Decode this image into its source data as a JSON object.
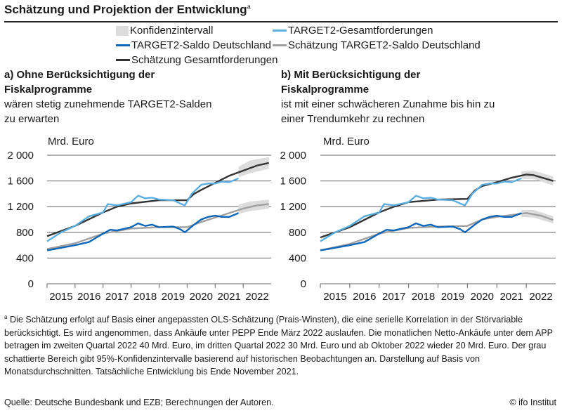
{
  "title": "Schätzung und Projektion der Entwicklung",
  "title_sup": "a",
  "legend": [
    {
      "label": "Konfidenzintervall",
      "color": "#dcdcdc",
      "kind": "box"
    },
    {
      "label": "TARGET2-Gesamtforderungen",
      "color": "#5aaee0",
      "kind": "line"
    },
    {
      "label": "TARGET2-Saldo Deutschland",
      "color": "#0a66b8",
      "kind": "line"
    },
    {
      "label": "Schätzung TARGET2-Saldo Deutschland",
      "color": "#a0a0a0",
      "kind": "line"
    },
    {
      "label": "Schätzung Gesamtforderungen",
      "color": "#333333",
      "kind": "line"
    }
  ],
  "panels": {
    "a": {
      "heading": "a) Ohne Berücksichtigung der",
      "heading2": "Fiskalprogramme",
      "sub1": "wären stetig zunehmende TARGET2-Salden",
      "sub2": "zu erwarten"
    },
    "b": {
      "heading": "b) Mit Berücksichtigung der",
      "heading2": "Fiskalprogramme",
      "sub1": "ist mit einer schwächeren Zunahme bis hin zu",
      "sub2": "einer Trendumkehr zu rechnen"
    }
  },
  "chart_data": [
    {
      "type": "line",
      "panel": "a",
      "ylabel": "Mrd. Euro",
      "ylim": [
        0,
        2000
      ],
      "yticks": [
        0,
        400,
        800,
        1200,
        1600,
        2000
      ],
      "ytick_labels": [
        "0",
        "400",
        "800",
        "1 200",
        "1 600",
        "2 000"
      ],
      "xlim": [
        "2015-01",
        "2022-12"
      ],
      "xtick_labels": [
        "2015",
        "2016",
        "2017",
        "2018",
        "2019",
        "2020",
        "2021",
        "2022"
      ],
      "grid": true,
      "series": [
        {
          "name": "TARGET2-Gesamtforderungen",
          "color": "#5aaee0",
          "points": [
            [
              "2015-01",
              660
            ],
            [
              "2015-07",
              800
            ],
            [
              "2016-01",
              900
            ],
            [
              "2016-07",
              1050
            ],
            [
              "2017-01",
              1110
            ],
            [
              "2017-03",
              1240
            ],
            [
              "2017-07",
              1220
            ],
            [
              "2018-01",
              1270
            ],
            [
              "2018-04",
              1370
            ],
            [
              "2018-07",
              1330
            ],
            [
              "2018-10",
              1340
            ],
            [
              "2019-01",
              1310
            ],
            [
              "2019-07",
              1300
            ],
            [
              "2019-10",
              1250
            ],
            [
              "2019-12",
              1220
            ],
            [
              "2020-03",
              1400
            ],
            [
              "2020-07",
              1540
            ],
            [
              "2020-10",
              1560
            ],
            [
              "2021-01",
              1560
            ],
            [
              "2021-04",
              1590
            ],
            [
              "2021-07",
              1580
            ],
            [
              "2021-11",
              1640
            ]
          ]
        },
        {
          "name": "TARGET2-Saldo Deutschland",
          "color": "#0a66b8",
          "points": [
            [
              "2015-01",
              520
            ],
            [
              "2015-07",
              560
            ],
            [
              "2016-01",
              600
            ],
            [
              "2016-07",
              650
            ],
            [
              "2017-01",
              780
            ],
            [
              "2017-04",
              840
            ],
            [
              "2017-07",
              830
            ],
            [
              "2018-01",
              880
            ],
            [
              "2018-04",
              940
            ],
            [
              "2018-07",
              900
            ],
            [
              "2018-10",
              920
            ],
            [
              "2019-01",
              880
            ],
            [
              "2019-07",
              890
            ],
            [
              "2019-10",
              850
            ],
            [
              "2019-12",
              800
            ],
            [
              "2020-04",
              920
            ],
            [
              "2020-07",
              1000
            ],
            [
              "2020-10",
              1040
            ],
            [
              "2021-01",
              1060
            ],
            [
              "2021-04",
              1040
            ],
            [
              "2021-07",
              1040
            ],
            [
              "2021-11",
              1100
            ]
          ]
        },
        {
          "name": "Schätzung Gesamtforderungen",
          "color": "#333333",
          "points": [
            [
              "2015-01",
              740
            ],
            [
              "2016-01",
              900
            ],
            [
              "2017-01",
              1110
            ],
            [
              "2017-07",
              1200
            ],
            [
              "2018-01",
              1250
            ],
            [
              "2019-01",
              1300
            ],
            [
              "2020-01",
              1300
            ],
            [
              "2020-04",
              1400
            ],
            [
              "2020-07",
              1460
            ],
            [
              "2021-01",
              1570
            ],
            [
              "2021-07",
              1680
            ],
            [
              "2022-01",
              1760
            ],
            [
              "2022-07",
              1840
            ],
            [
              "2022-12",
              1880
            ]
          ]
        },
        {
          "name": "Schätzung TARGET2-Saldo Deutschland",
          "color": "#a0a0a0",
          "points": [
            [
              "2015-01",
              540
            ],
            [
              "2016-01",
              630
            ],
            [
              "2017-01",
              780
            ],
            [
              "2018-01",
              860
            ],
            [
              "2019-01",
              880
            ],
            [
              "2020-01",
              880
            ],
            [
              "2020-07",
              960
            ],
            [
              "2021-01",
              1030
            ],
            [
              "2021-07",
              1100
            ],
            [
              "2022-01",
              1170
            ],
            [
              "2022-07",
              1220
            ],
            [
              "2022-12",
              1240
            ]
          ]
        }
      ],
      "confidence_bands": [
        {
          "series": "Schätzung Gesamtforderungen",
          "points": [
            [
              "2021-11",
              1660,
              1820
            ],
            [
              "2022-04",
              1720,
              1920
            ],
            [
              "2022-12",
              1790,
              1970
            ]
          ]
        },
        {
          "series": "Schätzung TARGET2-Saldo Deutschland",
          "points": [
            [
              "2021-11",
              1090,
              1230
            ],
            [
              "2022-04",
              1130,
              1280
            ],
            [
              "2022-12",
              1170,
              1310
            ]
          ]
        }
      ]
    },
    {
      "type": "line",
      "panel": "b",
      "ylabel": "Mrd. Euro",
      "ylim": [
        0,
        2000
      ],
      "yticks": [
        0,
        400,
        800,
        1200,
        1600,
        2000
      ],
      "ytick_labels": [
        "0",
        "400",
        "800",
        "1 200",
        "1 600",
        "2 000"
      ],
      "xlim": [
        "2015-01",
        "2022-12"
      ],
      "xtick_labels": [
        "2015",
        "2016",
        "2017",
        "2018",
        "2019",
        "2020",
        "2021",
        "2022"
      ],
      "grid": true,
      "series": [
        {
          "name": "TARGET2-Gesamtforderungen",
          "color": "#5aaee0",
          "points": [
            [
              "2015-01",
              660
            ],
            [
              "2015-07",
              800
            ],
            [
              "2016-01",
              900
            ],
            [
              "2016-07",
              1050
            ],
            [
              "2017-01",
              1110
            ],
            [
              "2017-03",
              1240
            ],
            [
              "2017-07",
              1220
            ],
            [
              "2018-01",
              1270
            ],
            [
              "2018-04",
              1370
            ],
            [
              "2018-07",
              1330
            ],
            [
              "2018-10",
              1340
            ],
            [
              "2019-01",
              1310
            ],
            [
              "2019-07",
              1300
            ],
            [
              "2019-10",
              1250
            ],
            [
              "2019-12",
              1220
            ],
            [
              "2020-03",
              1400
            ],
            [
              "2020-07",
              1540
            ],
            [
              "2020-10",
              1560
            ],
            [
              "2021-01",
              1560
            ],
            [
              "2021-04",
              1590
            ],
            [
              "2021-07",
              1580
            ],
            [
              "2021-11",
              1640
            ]
          ]
        },
        {
          "name": "TARGET2-Saldo Deutschland",
          "color": "#0a66b8",
          "points": [
            [
              "2015-01",
              520
            ],
            [
              "2015-07",
              560
            ],
            [
              "2016-01",
              600
            ],
            [
              "2016-07",
              650
            ],
            [
              "2017-01",
              780
            ],
            [
              "2017-04",
              840
            ],
            [
              "2017-07",
              830
            ],
            [
              "2018-01",
              880
            ],
            [
              "2018-04",
              940
            ],
            [
              "2018-07",
              900
            ],
            [
              "2018-10",
              920
            ],
            [
              "2019-01",
              880
            ],
            [
              "2019-07",
              890
            ],
            [
              "2019-10",
              850
            ],
            [
              "2019-12",
              800
            ],
            [
              "2020-04",
              920
            ],
            [
              "2020-07",
              1000
            ],
            [
              "2020-10",
              1040
            ],
            [
              "2021-01",
              1060
            ],
            [
              "2021-04",
              1040
            ],
            [
              "2021-07",
              1040
            ],
            [
              "2021-11",
              1100
            ]
          ]
        },
        {
          "name": "Schätzung Gesamtforderungen",
          "color": "#333333",
          "points": [
            [
              "2015-01",
              720
            ],
            [
              "2016-01",
              880
            ],
            [
              "2017-01",
              1110
            ],
            [
              "2017-07",
              1200
            ],
            [
              "2018-01",
              1270
            ],
            [
              "2019-01",
              1310
            ],
            [
              "2020-01",
              1320
            ],
            [
              "2020-04",
              1450
            ],
            [
              "2020-07",
              1520
            ],
            [
              "2021-01",
              1580
            ],
            [
              "2021-07",
              1650
            ],
            [
              "2022-01",
              1700
            ],
            [
              "2022-04",
              1690
            ],
            [
              "2022-12",
              1600
            ]
          ]
        },
        {
          "name": "Schätzung TARGET2-Saldo Deutschland",
          "color": "#a0a0a0",
          "points": [
            [
              "2015-01",
              520
            ],
            [
              "2016-01",
              620
            ],
            [
              "2017-01",
              780
            ],
            [
              "2018-01",
              870
            ],
            [
              "2019-01",
              890
            ],
            [
              "2020-01",
              900
            ],
            [
              "2020-07",
              1000
            ],
            [
              "2021-01",
              1040
            ],
            [
              "2021-07",
              1070
            ],
            [
              "2022-01",
              1100
            ],
            [
              "2022-07",
              1060
            ],
            [
              "2022-12",
              990
            ]
          ]
        }
      ],
      "confidence_bands": [
        {
          "series": "Schätzung Gesamtforderungen",
          "points": [
            [
              "2021-11",
              1630,
              1750
            ],
            [
              "2022-04",
              1630,
              1760
            ],
            [
              "2022-12",
              1530,
              1670
            ]
          ]
        },
        {
          "series": "Schätzung TARGET2-Saldo Deutschland",
          "points": [
            [
              "2021-11",
              1040,
              1150
            ],
            [
              "2022-04",
              1030,
              1150
            ],
            [
              "2022-12",
              940,
              1050
            ]
          ]
        }
      ]
    }
  ],
  "footnote_mark": "a",
  "footnote": "Die Schätzung erfolgt auf Basis einer angepassten OLS-Schätzung (Prais-Winsten), die eine serielle Korrelation in der Störvariable berücksichtigt. Es wird angenommen, dass Ankäufe unter PEPP Ende März 2022 auslaufen. Die monatlichen Netto-Ankäufe unter dem APP betragen im zweiten Quartal 2022 40 Mrd. Euro, im dritten Quartal 2022 30 Mrd. Euro und ab Oktober 2022 wieder 20 Mrd. Euro. Der grau schattierte Bereich gibt 95%-Konfidenzintervalle basierend auf historischen Beobachtungen an. Darstellung auf Basis von Monatsdurchschnitten. Tatsächliche Entwicklung bis Ende November 2021.",
  "source": "Quelle: Deutsche Bundesbank und EZB; Berechnungen der Autoren.",
  "credit": "© ifo Institut"
}
